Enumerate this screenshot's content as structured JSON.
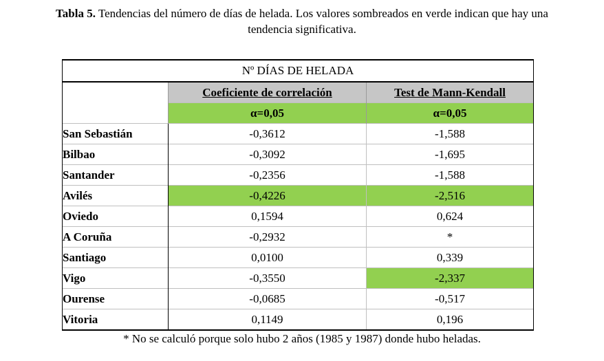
{
  "caption": {
    "label": "Tabla 5.",
    "text_line1": " Tendencias del número de días de helada. Los valores sombreados en verde indican que hay una",
    "text_line2": "tendencia significativa."
  },
  "table": {
    "title": "Nº DÍAS DE HELADA",
    "columns": [
      "Coeficiente de correlación",
      "Test de Mann-Kendall"
    ],
    "alpha": [
      "α=0,05",
      "α=0,05"
    ],
    "highlight_color": "#92d050",
    "header_color": "#c6c6c6",
    "rows": [
      {
        "station": "San Sebastián",
        "corr": "-0,3612",
        "mk": "-1,588",
        "corr_sig": false,
        "mk_sig": false
      },
      {
        "station": "Bilbao",
        "corr": "-0,3092",
        "mk": "-1,695",
        "corr_sig": false,
        "mk_sig": false
      },
      {
        "station": "Santander",
        "corr": "-0,2356",
        "mk": "-1,588",
        "corr_sig": false,
        "mk_sig": false
      },
      {
        "station": "Avilés",
        "corr": "-0,4226",
        "mk": "-2,516",
        "corr_sig": true,
        "mk_sig": true
      },
      {
        "station": "Oviedo",
        "corr": "0,1594",
        "mk": "0,624",
        "corr_sig": false,
        "mk_sig": false
      },
      {
        "station": "A Coruña",
        "corr": "-0,2932",
        "mk": "*",
        "corr_sig": false,
        "mk_sig": false
      },
      {
        "station": "Santiago",
        "corr": "0,0100",
        "mk": "0,339",
        "corr_sig": false,
        "mk_sig": false
      },
      {
        "station": "Vigo",
        "corr": "-0,3550",
        "mk": "-2,337",
        "corr_sig": false,
        "mk_sig": true
      },
      {
        "station": "Ourense",
        "corr": "-0,0685",
        "mk": "-0,517",
        "corr_sig": false,
        "mk_sig": false
      },
      {
        "station": "Vitoria",
        "corr": "0,1149",
        "mk": "0,196",
        "corr_sig": false,
        "mk_sig": false
      }
    ]
  },
  "footnote": "* No se calculó porque solo hubo 2 años (1985 y 1987) donde hubo heladas."
}
